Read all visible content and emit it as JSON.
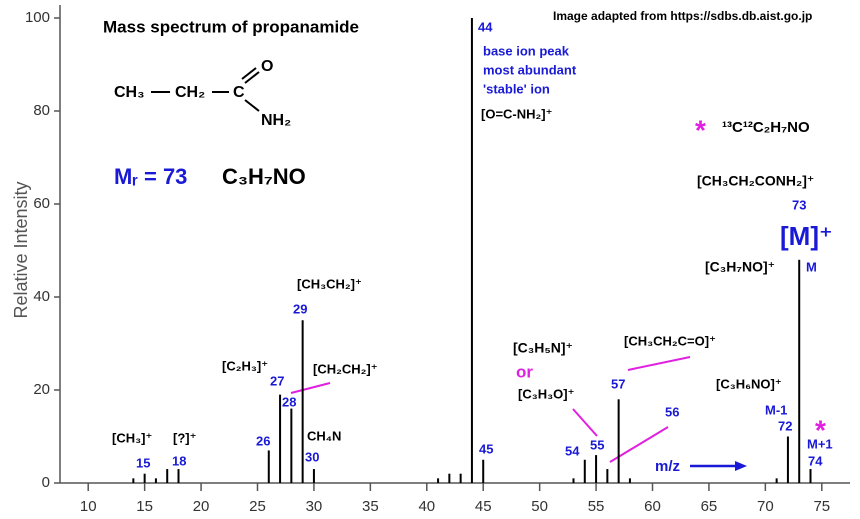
{
  "chart_data": {
    "type": "bar",
    "title": "Mass spectrum of propanamide",
    "subtitle": "Image adapted from https://sdbs.db.aist.go.jp",
    "y_label": "Relative Intensity",
    "x": [
      14,
      15,
      16,
      17,
      18,
      26,
      27,
      28,
      29,
      30,
      41,
      42,
      43,
      44,
      45,
      53,
      54,
      55,
      56,
      57,
      58,
      71,
      72,
      73,
      74
    ],
    "values": [
      1,
      2,
      1,
      3,
      3,
      7,
      19,
      16,
      35,
      3,
      1,
      2,
      2,
      100,
      5,
      1,
      5,
      6,
      3,
      18,
      1,
      1,
      10,
      48,
      3
    ],
    "color": "#000000",
    "xlim": [
      7.5,
      77.5
    ],
    "xticks": [
      10,
      15,
      20,
      25,
      30,
      35,
      40,
      45,
      50,
      55,
      60,
      65,
      70,
      75
    ],
    "ylim": [
      0,
      100
    ],
    "yticks": [
      0,
      20,
      40,
      60,
      80,
      100
    ],
    "annotations": [
      "CH₃",
      "CH₂",
      "C",
      "O",
      "NH₂",
      "Mᵣ = 73",
      "C₃H₇NO",
      "44",
      "base ion peak",
      "most abundant",
      "'stable' ion",
      "[O=C-NH₂]⁺",
      "*",
      "¹³C¹²C₂H₇NO",
      "[CH₃CH₂CONH₂]⁺",
      "73",
      "[M]⁺",
      "[C₃H₇NO]⁺",
      "M",
      "[CH₃CH₂]⁺",
      "29",
      "[C₂H₃]⁺",
      "27",
      "28",
      "[CH₂CH₂]⁺",
      "26",
      "CH₄N",
      "30",
      "[CH₃]⁺",
      "15",
      "[?]⁺",
      "18",
      "45",
      "[C₃H₅N]⁺",
      "or",
      "[C₃H₃O]⁺",
      "54",
      "55",
      "57",
      "[CH₃CH₂C=O]⁺",
      "56",
      "[C₃H₆NO]⁺",
      "M-1",
      "72",
      "*",
      "M+1",
      "74",
      "m/z"
    ]
  }
}
